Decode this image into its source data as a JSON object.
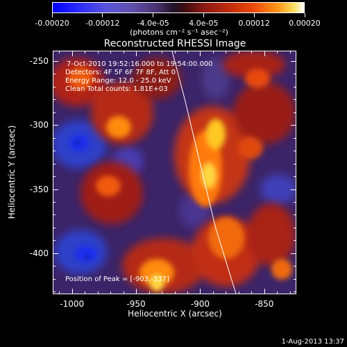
{
  "colorbar": {
    "labels": [
      "-0.00020",
      "-0.00012",
      "-4.0e-05",
      "4.0e-05",
      "0.00012",
      "0.00020"
    ],
    "values": [
      -0.0002,
      -0.00012,
      -4e-05,
      4e-05,
      0.00012,
      0.0002
    ],
    "units": "(photons cm⁻² s⁻¹ asec⁻²)"
  },
  "title": "Reconstructed RHESSI Image",
  "annotations": {
    "time_range": "7-Oct-2010 19:52:16.000 to 19:54:00.000",
    "detectors": "Detectors: 4F 5F 6F 7F 8F, Att 0",
    "energy_range": "Energy Range: 12.0 - 25.0 keV",
    "algorithm": "Clean     Total counts: 1.81E+03",
    "peak_position": "Position of Peak = [-903,-337]"
  },
  "axes": {
    "x_title": "Heliocentric X (arcsec)",
    "y_title": "Heliocentric Y (arcsec)",
    "x_ticks": [
      "-1000",
      "-950",
      "-900",
      "-850"
    ],
    "x_tick_values": [
      -1000,
      -950,
      -900,
      -850
    ],
    "y_ticks": [
      "-250",
      "-300",
      "-350",
      "-400"
    ],
    "y_tick_values": [
      -250,
      -300,
      -350,
      -400
    ],
    "x_range": [
      -1015,
      -825
    ],
    "y_range": [
      -432,
      -242
    ]
  },
  "chart_data": {
    "type": "heatmap",
    "title": "Reconstructed RHESSI Image",
    "xlabel": "Heliocentric X (arcsec)",
    "ylabel": "Heliocentric Y (arcsec)",
    "xlim": [
      -1015,
      -825
    ],
    "ylim": [
      -432,
      -242
    ],
    "colorbar_range": [
      -0.0002,
      0.0002
    ],
    "peak": [
      -903,
      -337
    ],
    "limb_curve": [
      [
        -922,
        -242
      ],
      [
        -912,
        -280
      ],
      [
        -900,
        -330
      ],
      [
        -888,
        -380
      ],
      [
        -872,
        -432
      ]
    ]
  },
  "timestamp": "1-Aug-2013 13:37"
}
